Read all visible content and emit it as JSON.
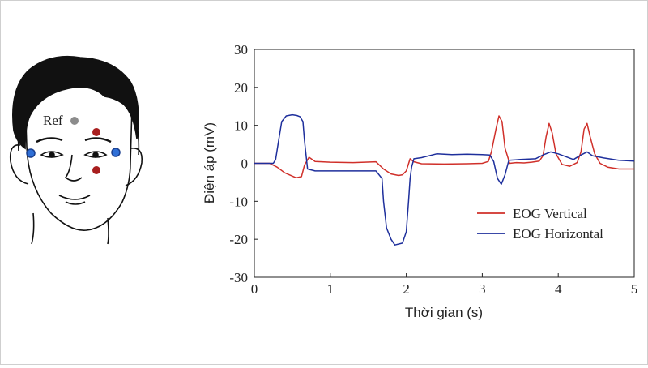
{
  "figure": {
    "ref_label": "Ref",
    "electrode_colors": {
      "ref": "#8c8c8c",
      "vertical": "#a81e1e",
      "horizontal": "#2f6fd6"
    }
  },
  "chart_data": {
    "type": "line",
    "xlabel": "Thời gian (s)",
    "ylabel": "Điện áp  (mV)",
    "xlim": [
      0,
      5
    ],
    "ylim": [
      -30,
      30
    ],
    "xticks": [
      0,
      1,
      2,
      3,
      4,
      5
    ],
    "yticks": [
      30,
      20,
      10,
      0,
      -10,
      -20,
      -30
    ],
    "grid": false,
    "legend_position": "bottom-right",
    "series": [
      {
        "name": "EOG Vertical",
        "color": "#d0302a",
        "x": [
          0,
          0.2,
          0.3,
          0.4,
          0.55,
          0.62,
          0.66,
          0.72,
          0.8,
          1.0,
          1.3,
          1.6,
          1.7,
          1.8,
          1.9,
          1.95,
          2.0,
          2.05,
          2.1,
          2.2,
          2.5,
          2.8,
          3.0,
          3.08,
          3.12,
          3.18,
          3.22,
          3.26,
          3.3,
          3.36,
          3.45,
          3.55,
          3.65,
          3.75,
          3.8,
          3.84,
          3.88,
          3.92,
          3.97,
          4.05,
          4.15,
          4.25,
          4.3,
          4.34,
          4.38,
          4.42,
          4.48,
          4.55,
          4.65,
          4.8,
          5.0
        ],
        "values": [
          0,
          0,
          -1,
          -2.5,
          -3.8,
          -3.5,
          -0.5,
          1.6,
          0.5,
          0.3,
          0.2,
          0.4,
          -1.5,
          -2.8,
          -3.2,
          -3,
          -2,
          1.2,
          0.4,
          -0.1,
          -0.2,
          -0.1,
          0,
          0.5,
          3,
          9,
          12.5,
          11,
          4,
          0,
          0.2,
          0.1,
          0.3,
          0.6,
          2,
          7,
          10.5,
          8,
          2.5,
          -0.3,
          -0.8,
          0.2,
          3,
          9,
          10.5,
          7,
          2.5,
          0,
          -1,
          -1.5,
          -1.5
        ]
      },
      {
        "name": "EOG Horizontal",
        "color": "#1e2f9c",
        "x": [
          0,
          0.25,
          0.28,
          0.32,
          0.36,
          0.42,
          0.5,
          0.56,
          0.6,
          0.64,
          0.66,
          0.7,
          0.8,
          1.0,
          1.3,
          1.6,
          1.68,
          1.7,
          1.74,
          1.8,
          1.85,
          1.95,
          2.0,
          2.03,
          2.05,
          2.07,
          2.1,
          2.2,
          2.4,
          2.6,
          2.8,
          3.0,
          3.1,
          3.15,
          3.2,
          3.25,
          3.3,
          3.35,
          3.5,
          3.7,
          3.8,
          3.9,
          4.0,
          4.2,
          4.3,
          4.38,
          4.45,
          4.6,
          4.8,
          5.0
        ],
        "values": [
          0,
          0,
          1,
          6,
          11,
          12.5,
          12.8,
          12.6,
          12.3,
          11,
          6,
          -1.5,
          -2,
          -2,
          -2,
          -2,
          -4,
          -10,
          -17,
          -20,
          -21.5,
          -21,
          -18,
          -10,
          -4,
          -1,
          1.2,
          1.5,
          2.5,
          2.3,
          2.4,
          2.3,
          2.2,
          0.5,
          -4,
          -5.5,
          -3,
          0.8,
          1,
          1.2,
          2.2,
          3,
          2.5,
          1,
          2.2,
          3,
          2,
          1.4,
          0.8,
          0.6
        ]
      }
    ]
  }
}
